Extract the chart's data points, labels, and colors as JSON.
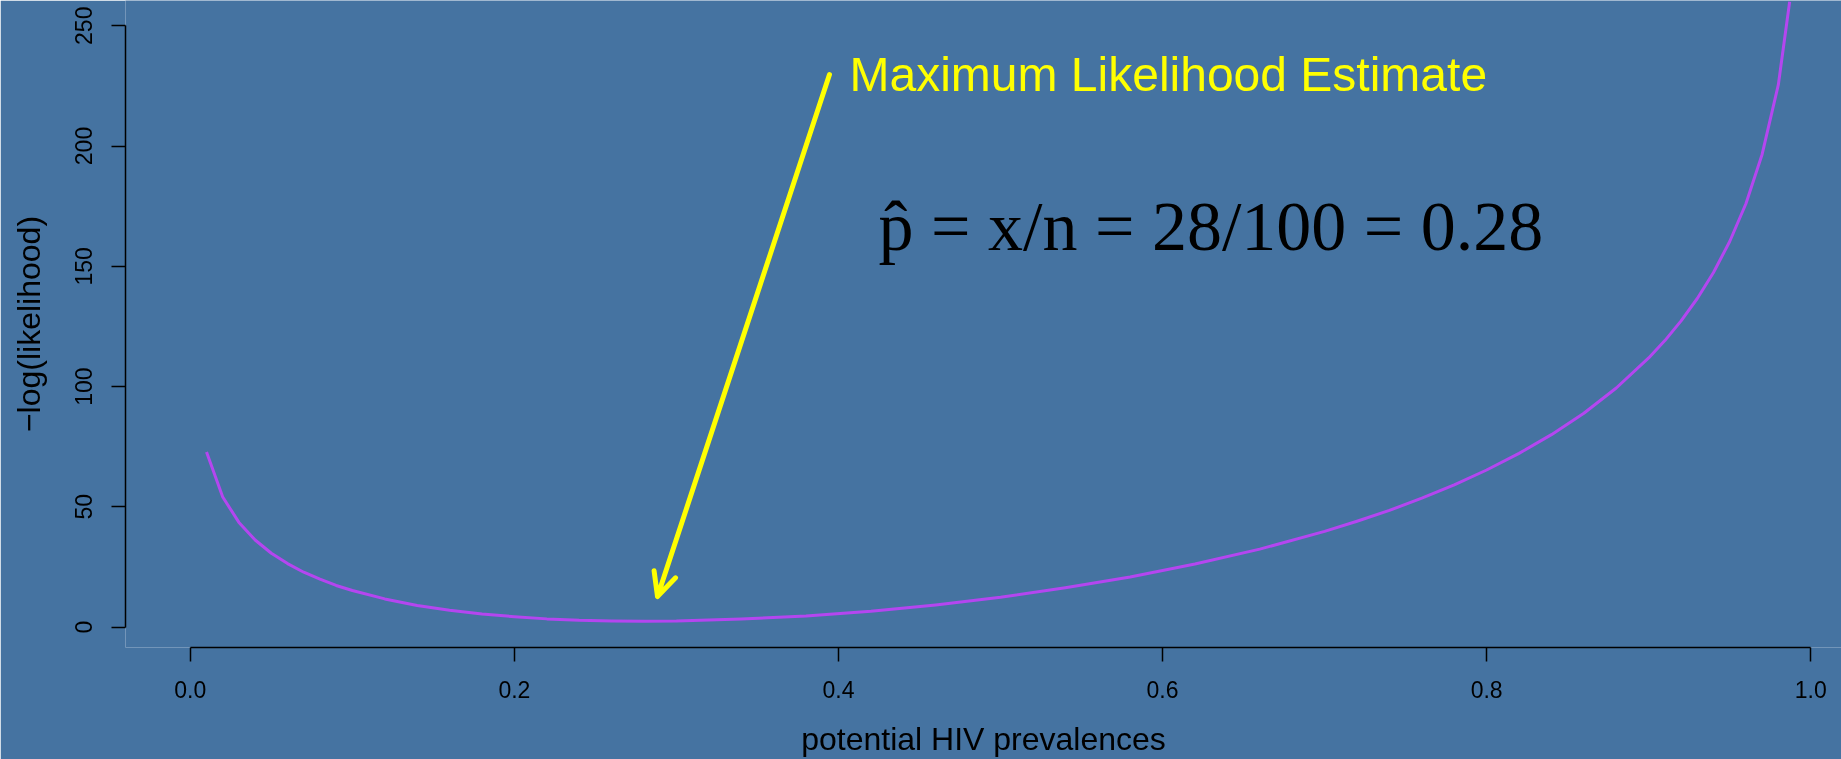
{
  "chart_data": {
    "type": "line",
    "xlabel": "potential HIV prevalences",
    "ylabel": "−log(likelihood)",
    "x": [
      0.01,
      0.02,
      0.03,
      0.04,
      0.05,
      0.06,
      0.07,
      0.08,
      0.09,
      0.1,
      0.12,
      0.14,
      0.16,
      0.18,
      0.2,
      0.22,
      0.24,
      0.26,
      0.28,
      0.3,
      0.34,
      0.38,
      0.42,
      0.46,
      0.5,
      0.54,
      0.58,
      0.62,
      0.66,
      0.7,
      0.72,
      0.74,
      0.76,
      0.78,
      0.8,
      0.82,
      0.84,
      0.86,
      0.88,
      0.9,
      0.91,
      0.92,
      0.93,
      0.94,
      0.95,
      0.96,
      0.97,
      0.98,
      0.987
    ],
    "series": [
      {
        "color": "#b446f0",
        "values": [
          72.8,
          54.1,
          43.5,
          36.2,
          30.7,
          26.4,
          22.8,
          19.9,
          17.3,
          15.2,
          11.7,
          9.0,
          7.0,
          5.4,
          4.3,
          3.4,
          2.8,
          2.5,
          2.4,
          2.5,
          3.3,
          4.6,
          6.6,
          9.2,
          12.4,
          16.3,
          20.8,
          26.2,
          32.4,
          39.8,
          44.0,
          48.5,
          53.6,
          59.1,
          65.3,
          72.2,
          80.0,
          88.9,
          99.4,
          111.9,
          119.1,
          127.3,
          136.6,
          147.4,
          160.3,
          176.0,
          196.5,
          225.4,
          260
        ]
      }
    ],
    "xlim": [
      -0.04,
      1.019
    ],
    "ylim": [
      -8.5,
      260.5
    ],
    "xticks": [
      {
        "value": 0,
        "label": "0.0"
      },
      0.2,
      0.4,
      0.6,
      0.8,
      {
        "value": 1,
        "label": "1.0"
      }
    ],
    "yticks": [
      0,
      50,
      100,
      150,
      200,
      250
    ],
    "annotations": [
      "Maximum Likelihood Estimate",
      "p̂ = x/n = 28/100 = 0.28"
    ]
  }
}
